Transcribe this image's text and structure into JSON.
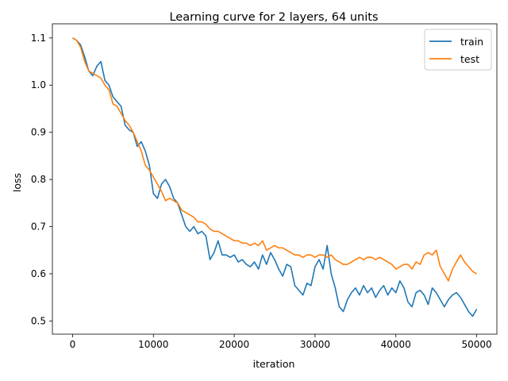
{
  "chart_data": {
    "type": "line",
    "title": "Learning curve for 2 layers, 64 units",
    "xlabel": "iteration",
    "ylabel": "loss",
    "xlim": [
      -2500,
      52500
    ],
    "ylim": [
      0.472,
      1.13
    ],
    "xticks": [
      0,
      10000,
      20000,
      30000,
      40000,
      50000
    ],
    "yticks": [
      0.5,
      0.6,
      0.7,
      0.8,
      0.9,
      1.0,
      1.1
    ],
    "xtick_labels": [
      "0",
      "10000",
      "20000",
      "30000",
      "40000",
      "50000"
    ],
    "ytick_labels": [
      "0.5",
      "0.6",
      "0.7",
      "0.8",
      "0.9",
      "1.0",
      "1.1"
    ],
    "grid": false,
    "legend": "top-right",
    "series": [
      {
        "name": "train",
        "color": "#1f77b4",
        "x": [
          0,
          500,
          1000,
          1500,
          2000,
          2500,
          3000,
          3500,
          4000,
          4500,
          5000,
          5500,
          6000,
          6500,
          7000,
          7500,
          8000,
          8500,
          9000,
          9500,
          10000,
          10500,
          11000,
          11500,
          12000,
          12500,
          13000,
          13500,
          14000,
          14500,
          15000,
          15500,
          16000,
          16500,
          17000,
          17500,
          18000,
          18500,
          19000,
          19500,
          20000,
          20500,
          21000,
          21500,
          22000,
          22500,
          23000,
          23500,
          24000,
          24500,
          25000,
          25500,
          26000,
          26500,
          27000,
          27500,
          28000,
          28500,
          29000,
          29500,
          30000,
          30500,
          31000,
          31500,
          32000,
          32500,
          33000,
          33500,
          34000,
          34500,
          35000,
          35500,
          36000,
          36500,
          37000,
          37500,
          38000,
          38500,
          39000,
          39500,
          40000,
          40500,
          41000,
          41500,
          42000,
          42500,
          43000,
          43500,
          44000,
          44500,
          45000,
          45500,
          46000,
          46500,
          47000,
          47500,
          48000,
          48500,
          49000,
          49500,
          50000
        ],
        "y": [
          1.1,
          1.095,
          1.085,
          1.06,
          1.03,
          1.02,
          1.04,
          1.05,
          1.01,
          1.0,
          0.975,
          0.965,
          0.955,
          0.915,
          0.905,
          0.9,
          0.87,
          0.88,
          0.86,
          0.83,
          0.77,
          0.76,
          0.79,
          0.8,
          0.785,
          0.76,
          0.75,
          0.725,
          0.7,
          0.69,
          0.7,
          0.685,
          0.69,
          0.68,
          0.63,
          0.645,
          0.67,
          0.64,
          0.64,
          0.635,
          0.64,
          0.625,
          0.63,
          0.62,
          0.615,
          0.625,
          0.61,
          0.64,
          0.62,
          0.645,
          0.63,
          0.61,
          0.595,
          0.62,
          0.615,
          0.575,
          0.565,
          0.555,
          0.58,
          0.575,
          0.615,
          0.63,
          0.61,
          0.66,
          0.6,
          0.57,
          0.53,
          0.52,
          0.545,
          0.56,
          0.57,
          0.555,
          0.575,
          0.56,
          0.57,
          0.55,
          0.565,
          0.575,
          0.555,
          0.57,
          0.56,
          0.585,
          0.57,
          0.54,
          0.53,
          0.56,
          0.565,
          0.555,
          0.535,
          0.57,
          0.56,
          0.545,
          0.53,
          0.545,
          0.555,
          0.56,
          0.55,
          0.535,
          0.52,
          0.51,
          0.525
        ]
      },
      {
        "name": "test",
        "color": "#ff7f0e",
        "x": [
          0,
          500,
          1000,
          1500,
          2000,
          2500,
          3000,
          3500,
          4000,
          4500,
          5000,
          5500,
          6000,
          6500,
          7000,
          7500,
          8000,
          8500,
          9000,
          9500,
          10000,
          10500,
          11000,
          11500,
          12000,
          12500,
          13000,
          13500,
          14000,
          14500,
          15000,
          15500,
          16000,
          16500,
          17000,
          17500,
          18000,
          18500,
          19000,
          19500,
          20000,
          20500,
          21000,
          21500,
          22000,
          22500,
          23000,
          23500,
          24000,
          24500,
          25000,
          25500,
          26000,
          26500,
          27000,
          27500,
          28000,
          28500,
          29000,
          29500,
          30000,
          30500,
          31000,
          31500,
          32000,
          32500,
          33000,
          33500,
          34000,
          34500,
          35000,
          35500,
          36000,
          36500,
          37000,
          37500,
          38000,
          38500,
          39000,
          39500,
          40000,
          40500,
          41000,
          41500,
          42000,
          42500,
          43000,
          43500,
          44000,
          44500,
          45000,
          45500,
          46000,
          46500,
          47000,
          47500,
          48000,
          48500,
          49000,
          49500,
          50000
        ],
        "y": [
          1.1,
          1.095,
          1.08,
          1.05,
          1.03,
          1.025,
          1.02,
          1.015,
          1.0,
          0.99,
          0.96,
          0.955,
          0.94,
          0.925,
          0.915,
          0.9,
          0.88,
          0.86,
          0.83,
          0.82,
          0.805,
          0.79,
          0.775,
          0.755,
          0.76,
          0.755,
          0.75,
          0.735,
          0.73,
          0.725,
          0.72,
          0.71,
          0.71,
          0.705,
          0.695,
          0.69,
          0.69,
          0.685,
          0.68,
          0.675,
          0.67,
          0.67,
          0.665,
          0.665,
          0.66,
          0.665,
          0.66,
          0.67,
          0.65,
          0.655,
          0.66,
          0.655,
          0.655,
          0.65,
          0.645,
          0.64,
          0.64,
          0.635,
          0.64,
          0.64,
          0.635,
          0.64,
          0.64,
          0.635,
          0.64,
          0.63,
          0.625,
          0.62,
          0.62,
          0.625,
          0.63,
          0.635,
          0.63,
          0.635,
          0.635,
          0.63,
          0.635,
          0.63,
          0.625,
          0.62,
          0.61,
          0.615,
          0.62,
          0.62,
          0.61,
          0.625,
          0.62,
          0.64,
          0.645,
          0.64,
          0.65,
          0.615,
          0.6,
          0.585,
          0.61,
          0.625,
          0.64,
          0.625,
          0.615,
          0.605,
          0.6
        ]
      }
    ]
  }
}
